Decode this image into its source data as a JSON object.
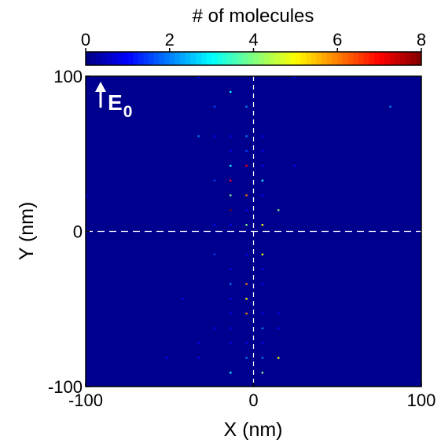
{
  "chart_data": {
    "type": "heatmap",
    "xlabel": "X (nm)",
    "ylabel": "Y (nm)",
    "xlim": [
      -100,
      100
    ],
    "ylim": [
      -100,
      100
    ],
    "x_ticks": [
      -100,
      0,
      100
    ],
    "y_ticks": [
      -100,
      0,
      100
    ],
    "x_tick_labels": [
      "-100",
      "0",
      "100"
    ],
    "y_tick_labels": [
      "-100",
      "0",
      "100"
    ],
    "bin_size": 10,
    "colormap": "jet",
    "background_value": 0,
    "reference_lines": [
      {
        "axis": "x",
        "value": 0,
        "style": "dashed",
        "color": "#ffffff"
      },
      {
        "axis": "y",
        "value": 0,
        "style": "dashed",
        "color": "#ffffff"
      }
    ],
    "colorbar": {
      "title": "# of molecules",
      "range": [
        0,
        8
      ],
      "ticks": [
        0,
        2,
        4,
        6,
        8
      ],
      "tick_labels": [
        "0",
        "2",
        "4",
        "6",
        "8"
      ],
      "placement": "top"
    },
    "annotation": {
      "arrow": "up",
      "main": "E",
      "subscript": "0",
      "color": "#ffffff"
    },
    "cells": [
      {
        "x": -30,
        "y": 100,
        "count": 1
      },
      {
        "x": 30,
        "y": 100,
        "count": 1
      },
      {
        "x": -10,
        "y": 90,
        "count": 3
      },
      {
        "x": -20,
        "y": 80,
        "count": 1.5
      },
      {
        "x": 0,
        "y": 80,
        "count": 2
      },
      {
        "x": 90,
        "y": 80,
        "count": 2
      },
      {
        "x": -30,
        "y": 60,
        "count": 2
      },
      {
        "x": -20,
        "y": 60,
        "count": 1
      },
      {
        "x": -10,
        "y": 60,
        "count": 1
      },
      {
        "x": 0,
        "y": 60,
        "count": 2
      },
      {
        "x": 10,
        "y": 60,
        "count": 1
      },
      {
        "x": -10,
        "y": 50,
        "count": 1
      },
      {
        "x": 0,
        "y": 50,
        "count": 1.5
      },
      {
        "x": 10,
        "y": 50,
        "count": 1
      },
      {
        "x": -10,
        "y": 40,
        "count": 3
      },
      {
        "x": 0,
        "y": 40,
        "count": 7
      },
      {
        "x": 10,
        "y": 40,
        "count": 1
      },
      {
        "x": 30,
        "y": 40,
        "count": 1
      },
      {
        "x": -20,
        "y": 30,
        "count": 1.5
      },
      {
        "x": -10,
        "y": 30,
        "count": 7
      },
      {
        "x": 10,
        "y": 30,
        "count": 3
      },
      {
        "x": -100,
        "y": 20,
        "count": 1
      },
      {
        "x": -10,
        "y": 20,
        "count": 4
      },
      {
        "x": 0,
        "y": 20,
        "count": 6
      },
      {
        "x": 10,
        "y": 20,
        "count": 1
      },
      {
        "x": -10,
        "y": 10,
        "count": 8
      },
      {
        "x": 0,
        "y": 10,
        "count": 1
      },
      {
        "x": 20,
        "y": 10,
        "count": 4
      },
      {
        "x": -20,
        "y": 0,
        "count": 1
      },
      {
        "x": -10,
        "y": 0,
        "count": 1
      },
      {
        "x": 0,
        "y": 0,
        "count": 4
      },
      {
        "x": 10,
        "y": 0,
        "count": 5
      },
      {
        "x": -20,
        "y": -20,
        "count": 1.5
      },
      {
        "x": 0,
        "y": -20,
        "count": 1
      },
      {
        "x": 10,
        "y": -20,
        "count": 5
      },
      {
        "x": -10,
        "y": -30,
        "count": 1
      },
      {
        "x": 10,
        "y": -30,
        "count": 1
      },
      {
        "x": -10,
        "y": -40,
        "count": 2
      },
      {
        "x": 0,
        "y": -40,
        "count": 6
      },
      {
        "x": 10,
        "y": -40,
        "count": 1
      },
      {
        "x": -40,
        "y": -50,
        "count": 1
      },
      {
        "x": -10,
        "y": -50,
        "count": 1
      },
      {
        "x": 0,
        "y": -50,
        "count": 5
      },
      {
        "x": -10,
        "y": -60,
        "count": 1
      },
      {
        "x": 0,
        "y": -60,
        "count": 6
      },
      {
        "x": 10,
        "y": -60,
        "count": 1
      },
      {
        "x": 20,
        "y": -60,
        "count": 1
      },
      {
        "x": -20,
        "y": -70,
        "count": 1
      },
      {
        "x": -10,
        "y": -70,
        "count": 1
      },
      {
        "x": 10,
        "y": -70,
        "count": 2
      },
      {
        "x": 20,
        "y": -70,
        "count": 1
      },
      {
        "x": -30,
        "y": -80,
        "count": 1
      },
      {
        "x": -10,
        "y": -80,
        "count": 1
      },
      {
        "x": 0,
        "y": -80,
        "count": 1
      },
      {
        "x": 10,
        "y": -80,
        "count": 1
      },
      {
        "x": -50,
        "y": -90,
        "count": 1
      },
      {
        "x": -30,
        "y": -90,
        "count": 1
      },
      {
        "x": 0,
        "y": -90,
        "count": 2
      },
      {
        "x": 10,
        "y": -90,
        "count": 2
      },
      {
        "x": 20,
        "y": -90,
        "count": 5
      },
      {
        "x": -10,
        "y": -100,
        "count": 3
      },
      {
        "x": 10,
        "y": -100,
        "count": 4
      }
    ]
  }
}
